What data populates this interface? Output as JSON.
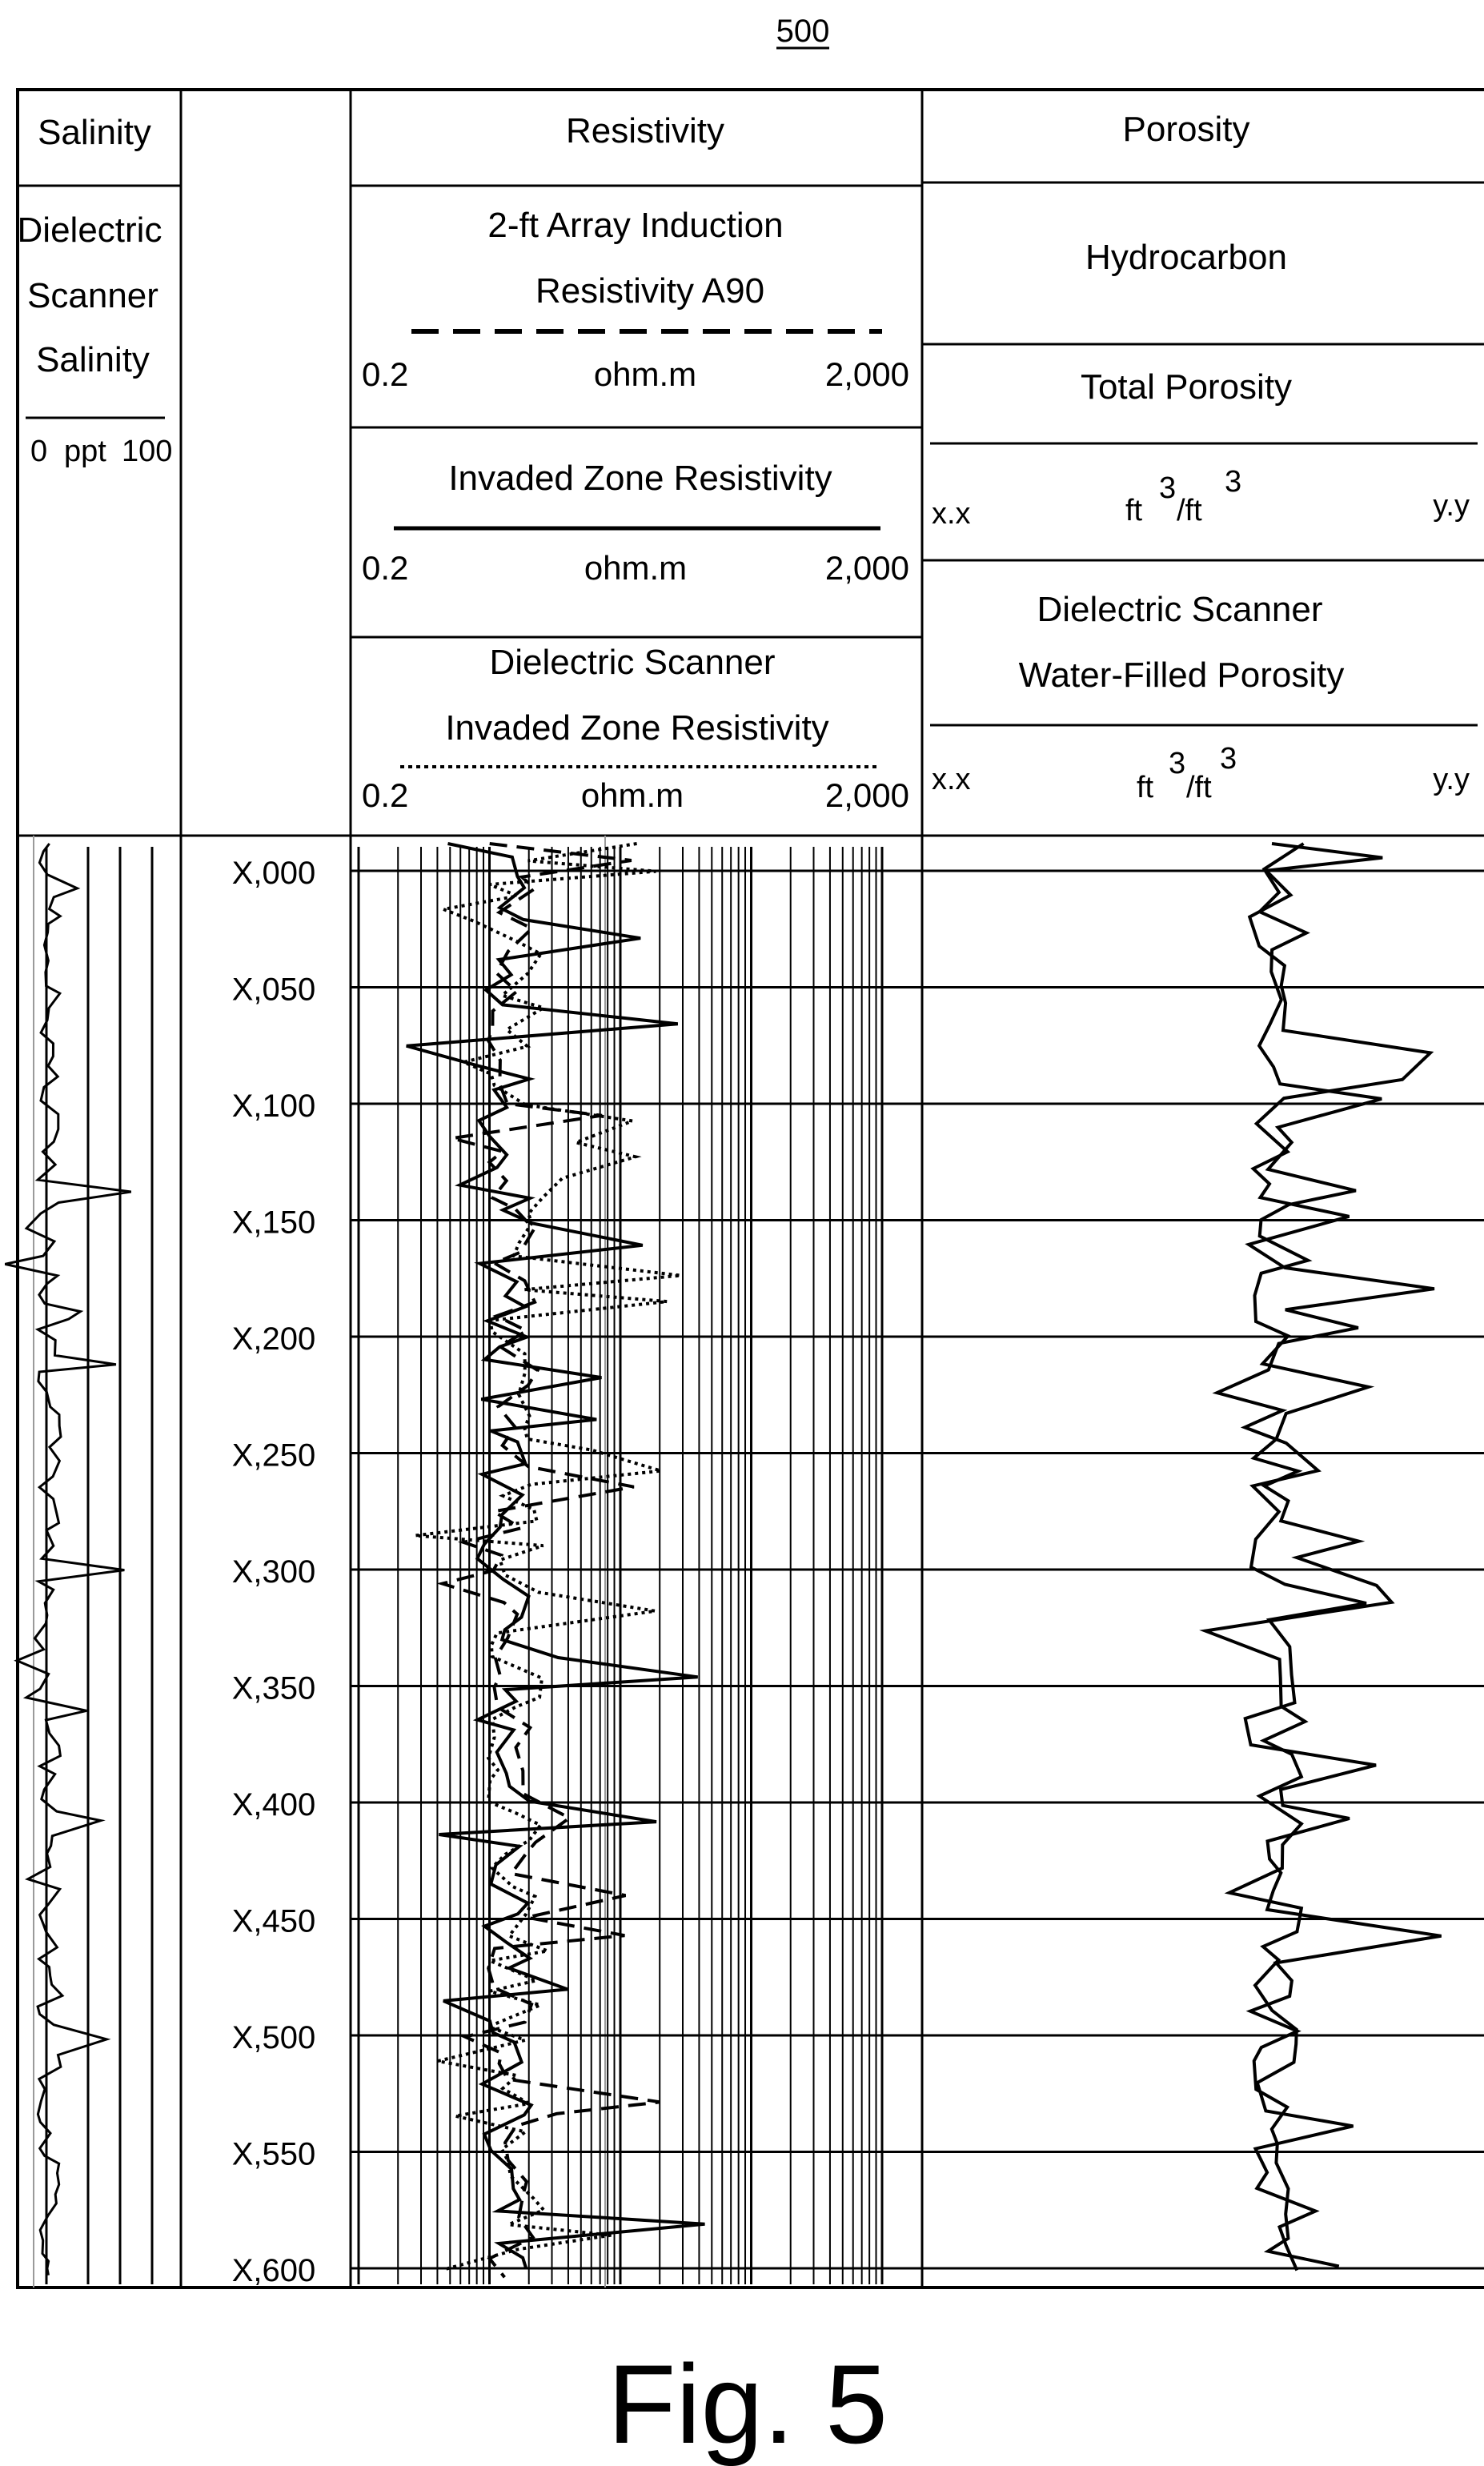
{
  "figure_ref": "500",
  "caption": "Fig. 5",
  "tracks": {
    "salinity": {
      "title": "Salinity",
      "curve_lines": [
        "Dielectric",
        "Scanner",
        "Salinity"
      ],
      "scale_min": "0",
      "scale_unit": "ppt",
      "scale_max": "100"
    },
    "resistivity": {
      "title": "Resistivity",
      "curves": [
        {
          "lines": [
            "2-ft Array Induction",
            "Resistivity A90"
          ],
          "line_style": "dashed",
          "min": "0.2",
          "unit": "ohm.m",
          "max": "2,000"
        },
        {
          "lines": [
            "Invaded Zone Resistivity"
          ],
          "line_style": "solid",
          "min": "0.2",
          "unit": "ohm.m",
          "max": "2,000"
        },
        {
          "lines": [
            "Dielectric Scanner",
            "Invaded Zone Resistivity"
          ],
          "line_style": "dotted",
          "min": "0.2",
          "unit": "ohm.m",
          "max": "2,000"
        }
      ]
    },
    "porosity": {
      "title": "Porosity",
      "fill_label": "Hydrocarbon",
      "curves": [
        {
          "lines": [
            "Total Porosity"
          ],
          "min": "x.x",
          "unit_base": "ft",
          "unit_exp": "3",
          "unit_sep": "/ft",
          "unit_exp2": "3",
          "max": "y.y"
        },
        {
          "lines": [
            "Dielectric Scanner",
            "Water-Filled Porosity"
          ],
          "min": "x.x",
          "unit_base": "ft",
          "unit_exp": "3",
          "unit_sep": "/ft",
          "unit_exp2": "3",
          "max": "y.y"
        }
      ]
    }
  },
  "depth_labels": [
    "X,000",
    "X,050",
    "X,100",
    "X,150",
    "X,200",
    "X,250",
    "X,300",
    "X,350",
    "X,400",
    "X,450",
    "X,500",
    "X,550",
    "X,600"
  ],
  "colors": {
    "line": "#000000",
    "grid": "#000000",
    "background": "#ffffff",
    "faint": "#9a9a9a"
  }
}
